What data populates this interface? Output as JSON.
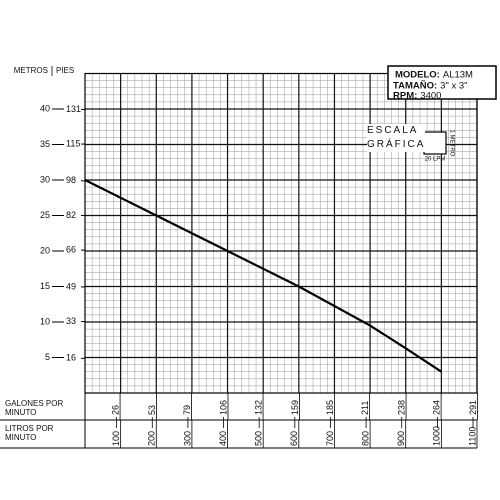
{
  "chart_data": {
    "type": "line",
    "y_title": "METROS",
    "y2_title": "PIES",
    "x2_title": "GALONES POR MINUTO",
    "x_title": "LITROS POR MINUTO",
    "x": [
      0,
      200,
      400,
      600,
      800,
      900,
      1000
    ],
    "series": [
      {
        "color": "#000000",
        "values": [
          30,
          25,
          20,
          15,
          9.5,
          6.3,
          3
        ]
      }
    ],
    "xlim": [
      0,
      1100
    ],
    "xticks": [
      100,
      200,
      300,
      400,
      500,
      600,
      700,
      800,
      900,
      1000,
      1100
    ],
    "x2lim": [
      0,
      290.6
    ],
    "x2ticks": [
      26,
      53,
      79,
      106,
      132,
      159,
      185,
      211,
      238,
      264,
      291
    ],
    "ylim": [
      0,
      45
    ],
    "yticks": [
      5,
      10,
      15,
      20,
      25,
      30,
      35,
      40
    ],
    "y2lim": [
      0,
      147.6
    ],
    "y2ticks": [
      16,
      33,
      49,
      66,
      82,
      98,
      115,
      131
    ],
    "grid": true,
    "minor_x": 20,
    "minor_y": 1,
    "info": {
      "model_label": "MODELO:",
      "model": "AL13M",
      "size_label": "TAMAÑO:",
      "size": "3\" x 3\"",
      "rpm_label": "RPM:",
      "rpm": "3400"
    },
    "scale": {
      "title": "ESCALA GRÁFICA",
      "y_step": "1 METRO",
      "x_step": "20 LPM"
    }
  }
}
